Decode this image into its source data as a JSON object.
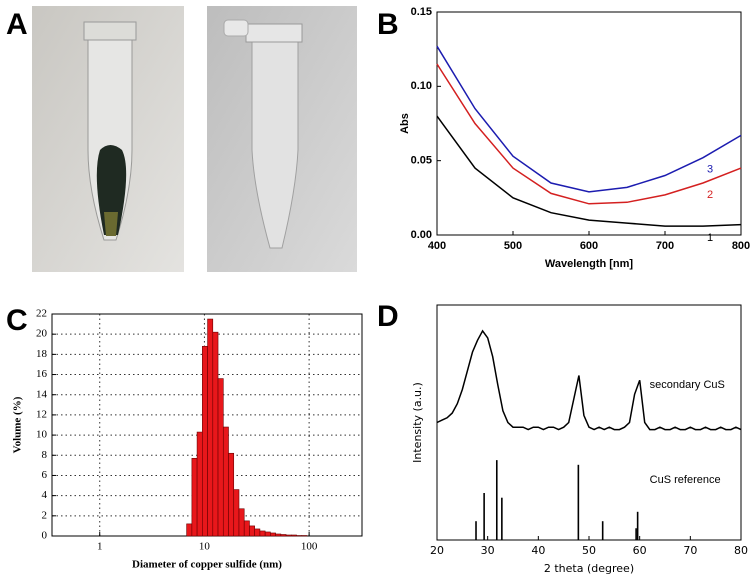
{
  "photo_panel": {
    "label": "A"
  },
  "chart_data": [
    {
      "label": "B",
      "type": "line",
      "xlabel": "Wavelength [nm]",
      "ylabel": "Abs",
      "x": [
        400,
        450,
        500,
        550,
        600,
        650,
        700,
        750,
        800
      ],
      "series": [
        {
          "name": "1",
          "color": "#000000",
          "values": [
            0.08,
            0.045,
            0.025,
            0.015,
            0.01,
            0.008,
            0.006,
            0.006,
            0.007
          ]
        },
        {
          "name": "2",
          "color": "#d42020",
          "values": [
            0.115,
            0.075,
            0.045,
            0.028,
            0.021,
            0.022,
            0.027,
            0.035,
            0.045
          ]
        },
        {
          "name": "3",
          "color": "#1c1cb0",
          "values": [
            0.127,
            0.085,
            0.053,
            0.035,
            0.029,
            0.032,
            0.04,
            0.052,
            0.067
          ]
        }
      ],
      "xlim": [
        400,
        800
      ],
      "xticks": [
        400,
        500,
        600,
        700,
        800
      ],
      "ylim": [
        0,
        0.15
      ],
      "yticks": [
        {
          "value": 0,
          "label": "0.00"
        },
        {
          "value": 0.05,
          "label": "0.05"
        },
        {
          "value": 0.1,
          "label": "0.10"
        },
        {
          "value": 0.15,
          "label": "0.15"
        }
      ]
    },
    {
      "label": "C",
      "type": "histogram",
      "xlabel": "Diameter of copper sulfide (nm)",
      "ylabel": "Volume (%)",
      "bins": [
        6.76,
        7.59,
        8.51,
        9.55,
        10.72,
        12.02,
        13.49,
        15.14,
        16.98,
        19.05,
        21.38,
        23.99,
        26.92,
        30.2,
        33.88,
        38.02,
        42.66,
        47.86,
        53.7,
        60.26,
        67.61,
        75.86,
        85.11,
        95.5
      ],
      "values": [
        1.2,
        7.7,
        10.3,
        18.8,
        21.5,
        20.2,
        15.6,
        10.8,
        8.2,
        4.6,
        2.7,
        1.5,
        1.0,
        0.7,
        0.5,
        0.4,
        0.3,
        0.2,
        0.15,
        0.1,
        0.1,
        0.05,
        0.05
      ],
      "color": "#e8171b",
      "log_x": true,
      "xlim": [
        0.35,
        320
      ],
      "xticks": [
        1,
        10,
        100
      ],
      "ylim": [
        0,
        22
      ],
      "yticks": [
        0,
        2,
        4,
        6,
        8,
        10,
        12,
        14,
        16,
        18,
        20,
        22
      ],
      "grid": true
    },
    {
      "label": "D",
      "type": "line",
      "xlabel": "2 theta (degree)",
      "ylabel": "Intensity (a.u.)",
      "x": [
        20,
        21,
        22,
        23,
        24,
        25,
        26,
        27,
        28,
        29,
        30,
        31,
        32,
        33,
        34,
        35,
        36,
        37,
        38,
        39,
        40,
        41,
        42,
        43,
        44,
        45,
        46,
        47,
        48,
        49,
        50,
        51,
        52,
        53,
        54,
        55,
        56,
        57,
        58,
        59,
        60,
        61,
        62,
        63,
        64,
        65,
        66,
        67,
        68,
        69,
        70,
        71,
        72,
        73,
        74,
        75,
        76,
        77,
        78,
        79,
        80
      ],
      "series": [
        {
          "name": "secondary CuS",
          "color": "#000000",
          "values": [
            50,
            51,
            52,
            54,
            58,
            64,
            72,
            80,
            85,
            89,
            86,
            78,
            66,
            55,
            50,
            48,
            48,
            48,
            47,
            48,
            48,
            47,
            48,
            48,
            47,
            48,
            50,
            60,
            70,
            53,
            48,
            47,
            48,
            47,
            48,
            47,
            47,
            48,
            50,
            62,
            68,
            50,
            47,
            47,
            48,
            47,
            47,
            48,
            47,
            47,
            48,
            47,
            47,
            48,
            47,
            47,
            48,
            47,
            47,
            48,
            47
          ]
        }
      ],
      "reference": {
        "name": "CuS reference",
        "color": "#000000",
        "x": [
          27.7,
          29.3,
          31.8,
          32.8,
          47.9,
          52.7,
          59.3,
          59.6
        ],
        "values": [
          8,
          20,
          34,
          18,
          32,
          8,
          5,
          12
        ]
      },
      "xlim": [
        20,
        80
      ],
      "xticks": [
        20,
        30,
        40,
        50,
        60,
        70,
        80
      ],
      "ylim": [
        0,
        100
      ]
    }
  ]
}
